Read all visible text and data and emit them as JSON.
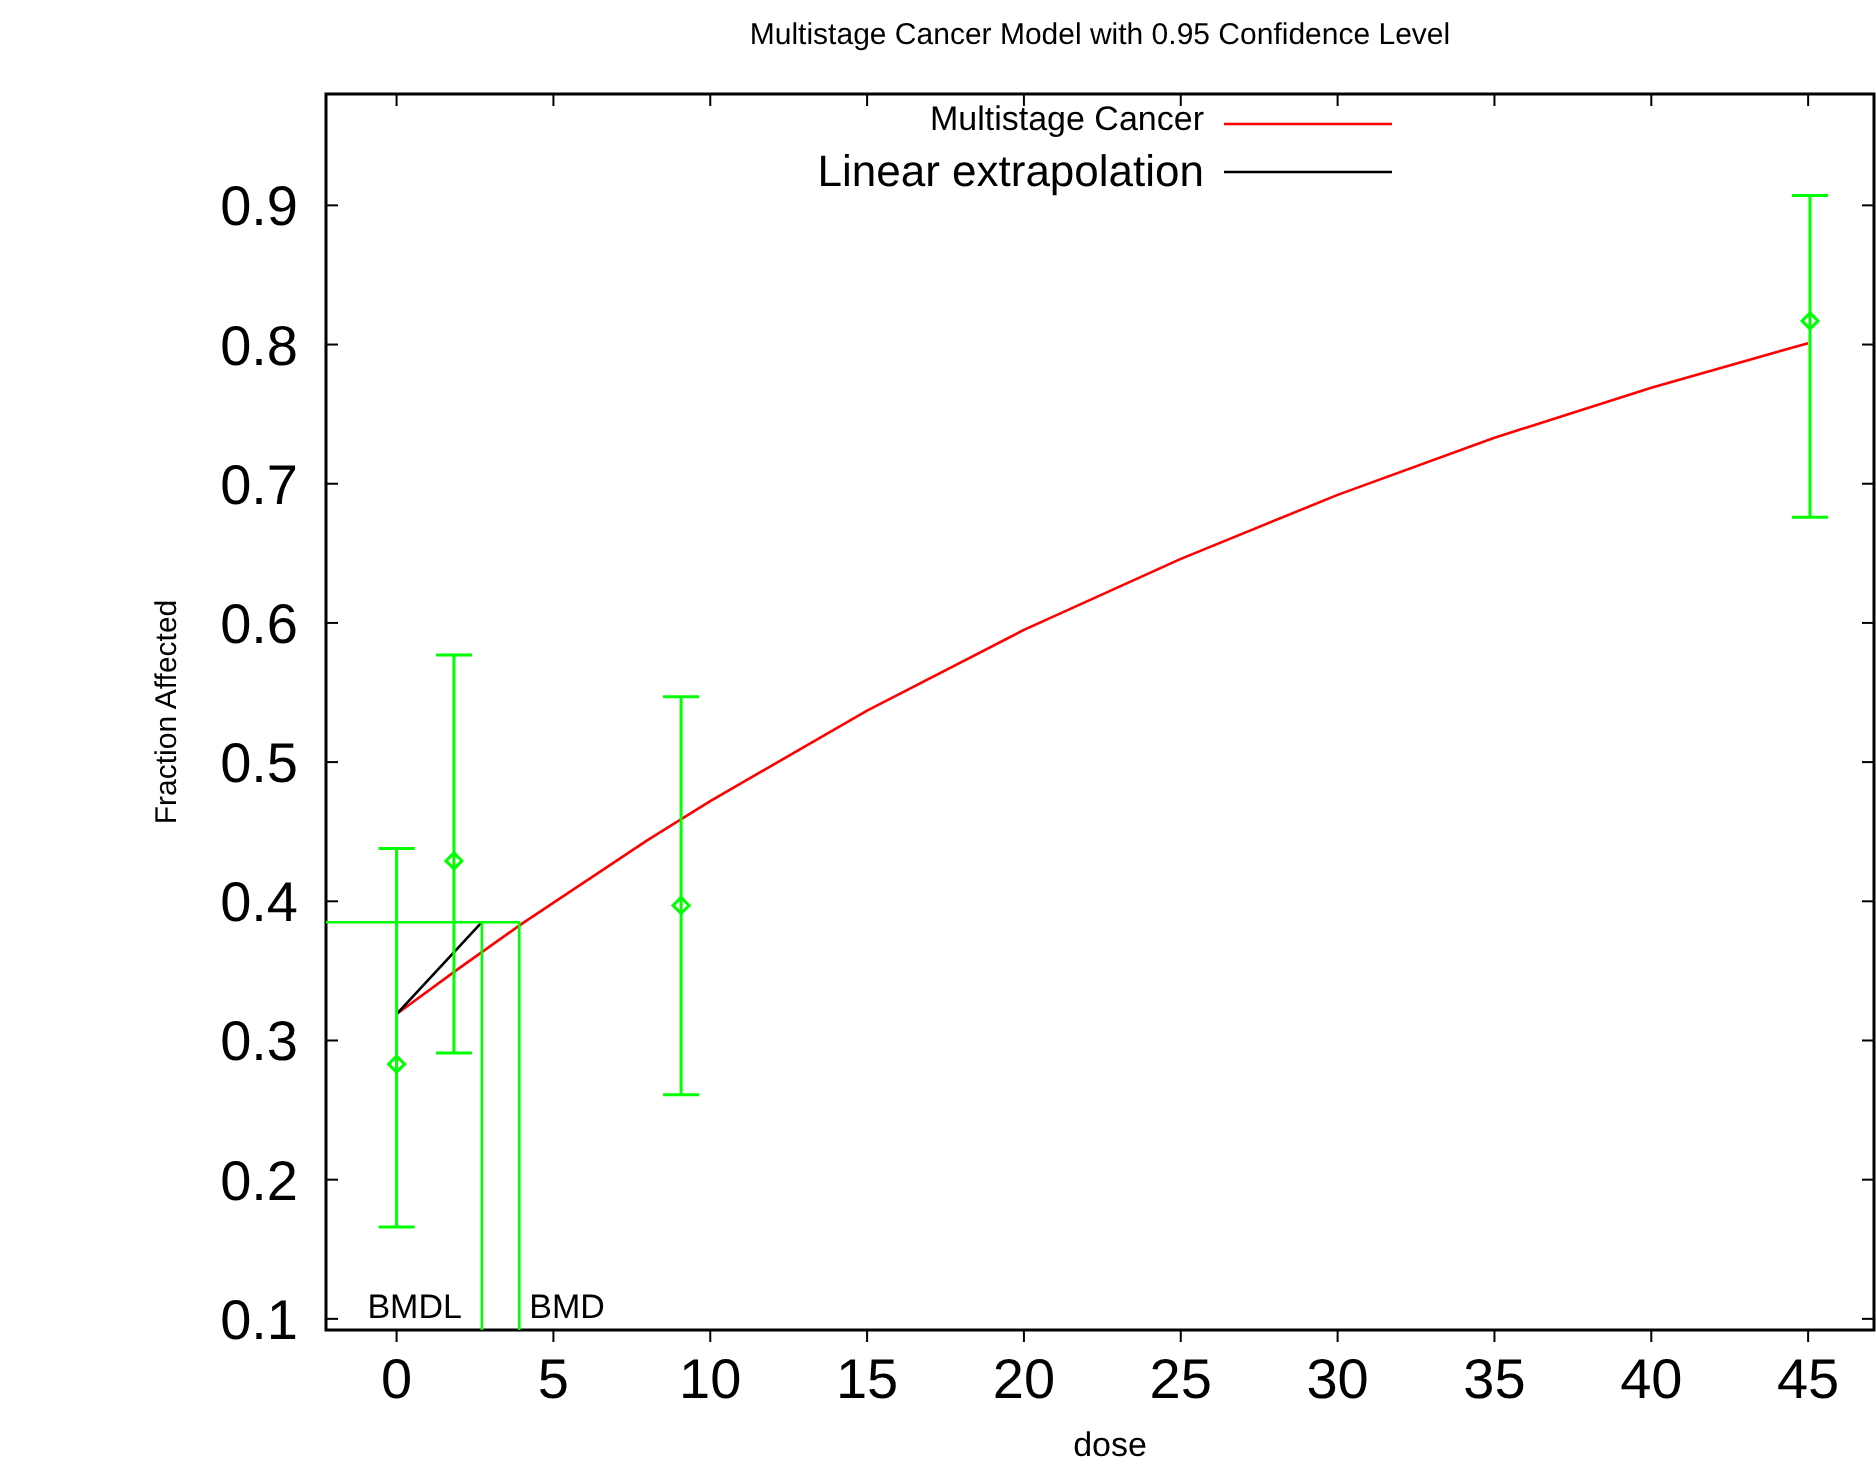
{
  "chart_data": {
    "type": "line",
    "title": "Multistage Cancer Model with 0.95 Confidence Level",
    "xlabel": "dose",
    "ylabel": "Fraction Affected",
    "xlim": [
      -2.25,
      47.1
    ],
    "ylim": [
      0.092,
      0.98
    ],
    "xticks": [
      0,
      5,
      10,
      15,
      20,
      25,
      30,
      35,
      40,
      45
    ],
    "yticks": [
      0.1,
      0.2,
      0.3,
      0.4,
      0.5,
      0.6,
      0.7,
      0.8,
      0.9
    ],
    "grid": false,
    "legend": "top",
    "series": [
      {
        "name": "Multistage Cancer",
        "color": "#ff0000",
        "x": [
          0,
          2,
          4,
          6,
          8,
          10,
          15,
          20,
          25,
          30,
          35,
          40,
          45
        ],
        "values": [
          0.319,
          0.352,
          0.384,
          0.414,
          0.444,
          0.472,
          0.537,
          0.595,
          0.646,
          0.692,
          0.733,
          0.769,
          0.801
        ]
      },
      {
        "name": "Linear extrapolation",
        "color": "#000000",
        "x": [
          0,
          2.72
        ],
        "values": [
          0.319,
          0.385
        ]
      },
      {
        "type": "scatter",
        "color": "#00ff00",
        "marker": "diamond",
        "x": [
          0,
          1.83,
          9.07,
          45.06
        ],
        "values": [
          0.283,
          0.429,
          0.397,
          0.817
        ],
        "errors": [
          [
            0.166,
            0.438
          ],
          [
            0.291,
            0.577
          ],
          [
            0.261,
            0.547
          ],
          [
            0.676,
            0.907
          ]
        ]
      },
      {
        "color": "#00ff00",
        "x": [
          -2.25,
          3.91,
          3.91
        ],
        "values": [
          0.385,
          0.385,
          0.092
        ]
      },
      {
        "color": "#00ff00",
        "x": [
          2.72,
          2.72
        ],
        "values": [
          0.385,
          0.092
        ]
      }
    ],
    "annotations": [
      {
        "text": "BMDL",
        "x": 2.72,
        "y": 0.092
      },
      {
        "text": "BMD",
        "x": 3.91,
        "y": 0.092
      }
    ]
  }
}
